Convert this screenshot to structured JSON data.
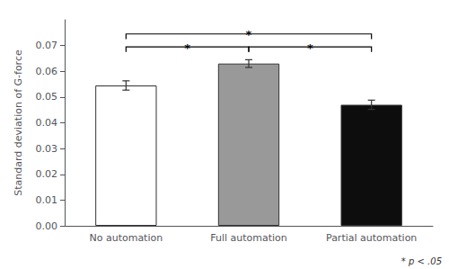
{
  "chart_data": {
    "type": "bar",
    "categories": [
      "No automation",
      "Full automation",
      "Partial automation"
    ],
    "values": [
      0.0545,
      0.063,
      0.047
    ],
    "errors": [
      0.0018,
      0.0015,
      0.0018
    ],
    "colors": [
      "#ffffff",
      "#999999",
      "#0d0d0d"
    ],
    "ylabel": "Standard deviation of G-force",
    "ylim": [
      0.0,
      0.08
    ],
    "yticks": [
      {
        "value": 0.0,
        "label": "0.00"
      },
      {
        "value": 0.01,
        "label": "0.01"
      },
      {
        "value": 0.02,
        "label": "0.02"
      },
      {
        "value": 0.03,
        "label": "0.03"
      },
      {
        "value": 0.04,
        "label": "0.04"
      },
      {
        "value": 0.05,
        "label": "0.05"
      },
      {
        "value": 0.06,
        "label": "0.06"
      },
      {
        "value": 0.07,
        "label": "0.07"
      }
    ],
    "brackets": [
      {
        "from": "No automation",
        "to": "Full automation",
        "y": 0.0695,
        "drop": 0.002,
        "label": "*"
      },
      {
        "from": "Full automation",
        "to": "Partial automation",
        "y": 0.0695,
        "drop": 0.002,
        "label": "*"
      },
      {
        "from": "No automation",
        "to": "Partial automation",
        "y": 0.0745,
        "drop": 0.002,
        "label": "*"
      }
    ],
    "footnote": "* p < .05",
    "grid": false
  }
}
